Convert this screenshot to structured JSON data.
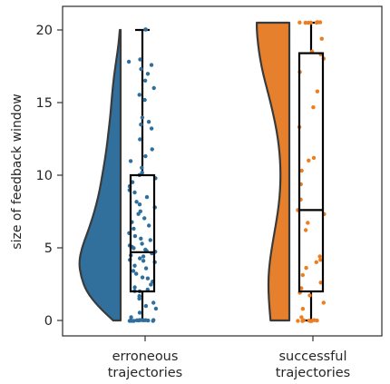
{
  "chart_data": {
    "type": "raincloud",
    "ylabel": "size of feedback window",
    "ylim": [
      -1,
      21.5
    ],
    "yticks": [
      0,
      5,
      10,
      15,
      20
    ],
    "categories": [
      {
        "lines": [
          "erroneous",
          "trajectories"
        ]
      },
      {
        "lines": [
          "successful",
          "trajectories"
        ]
      }
    ],
    "series": [
      {
        "color": "#2e6f9e",
        "violin_color": "#31709d",
        "box": {
          "min": 0,
          "q1": 2,
          "median": 4.7,
          "q3": 10,
          "max": 20
        },
        "points": [
          0,
          0,
          0,
          0,
          0,
          0,
          0,
          0,
          0,
          0,
          0,
          0,
          0,
          0,
          0,
          0.2,
          0.5,
          0.8,
          1,
          1.2,
          1.5,
          1.7,
          2,
          2,
          2.1,
          2.3,
          2.5,
          2.7,
          2.9,
          3,
          3.2,
          3.4,
          3.6,
          3.8,
          4,
          4.1,
          4.2,
          4.3,
          4.4,
          4.5,
          4.6,
          4.7,
          4.8,
          4.9,
          5,
          5.1,
          5.2,
          5.3,
          5.5,
          5.6,
          5.8,
          6,
          6.3,
          6.5,
          6.8,
          7,
          7.3,
          7.5,
          7.8,
          8,
          8.2,
          8.5,
          8.8,
          9,
          9.2,
          9.5,
          9.8,
          10,
          10.2,
          10.5,
          11,
          11.3,
          11.8,
          12.5,
          13.2,
          13.5,
          13.7,
          14,
          15.2,
          15.5,
          16,
          16.5,
          17,
          17.3,
          17.6,
          17.8,
          18,
          20,
          20
        ],
        "violin": [
          [
            0,
            0.18
          ],
          [
            1,
            0.55
          ],
          [
            2,
            0.82
          ],
          [
            3,
            0.95
          ],
          [
            4,
            1.0
          ],
          [
            5,
            0.93
          ],
          [
            6,
            0.8
          ],
          [
            7,
            0.68
          ],
          [
            8,
            0.58
          ],
          [
            9,
            0.5
          ],
          [
            10,
            0.44
          ],
          [
            11,
            0.38
          ],
          [
            12,
            0.33
          ],
          [
            13,
            0.29
          ],
          [
            14,
            0.25
          ],
          [
            15,
            0.22
          ],
          [
            16,
            0.19
          ],
          [
            17,
            0.15
          ],
          [
            18,
            0.1
          ],
          [
            19,
            0.05
          ],
          [
            20,
            0.02
          ]
        ]
      },
      {
        "color": "#ee7d1e",
        "violin_color": "#e7802c",
        "box": {
          "min": 0,
          "q1": 2,
          "median": 7.6,
          "q3": 18.4,
          "max": 20.5
        },
        "points": [
          0,
          0,
          0,
          0,
          0,
          0,
          0,
          0,
          0,
          0.2,
          0.8,
          1.2,
          1.7,
          1.9,
          2.2,
          2.6,
          3.1,
          3.6,
          4,
          4.2,
          4.4,
          6.2,
          6.7,
          7.3,
          7.6,
          8.3,
          9.4,
          10.3,
          11,
          11.2,
          13.3,
          14.7,
          15.8,
          17.1,
          18,
          18.3,
          18.5,
          19.4,
          20.5,
          20.5,
          20.5,
          20.5,
          20.5,
          20.5,
          20.5,
          20.5
        ],
        "violin": [
          [
            0,
            0.45
          ],
          [
            1,
            0.48
          ],
          [
            2,
            0.5
          ],
          [
            3,
            0.5
          ],
          [
            4,
            0.47
          ],
          [
            5,
            0.42
          ],
          [
            6,
            0.36
          ],
          [
            7,
            0.3
          ],
          [
            8,
            0.25
          ],
          [
            9,
            0.22
          ],
          [
            10,
            0.21
          ],
          [
            11,
            0.22
          ],
          [
            12,
            0.25
          ],
          [
            13,
            0.3
          ],
          [
            14,
            0.37
          ],
          [
            15,
            0.45
          ],
          [
            16,
            0.54
          ],
          [
            17,
            0.63
          ],
          [
            18,
            0.7
          ],
          [
            19,
            0.75
          ],
          [
            20,
            0.78
          ],
          [
            20.5,
            0.78
          ]
        ]
      }
    ]
  }
}
